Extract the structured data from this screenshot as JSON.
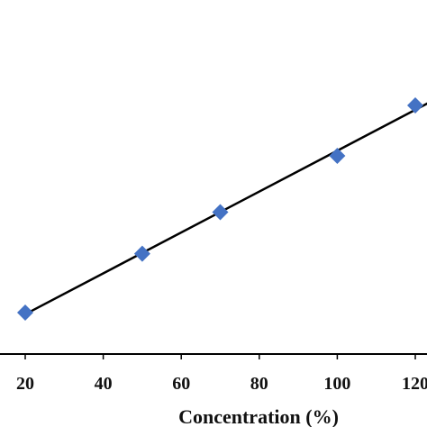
{
  "chart_data": {
    "type": "scatter",
    "title": "",
    "xlabel": "Concentration (%)",
    "ylabel": "",
    "xlim": [
      0,
      130
    ],
    "x_ticks": [
      20,
      40,
      60,
      80,
      100,
      120
    ],
    "x_tick_labels": [
      "20",
      "40",
      "60",
      "80",
      "100",
      "120"
    ],
    "grid": false,
    "legend": "none",
    "marker": "diamond",
    "series": [
      {
        "x": [
          20,
          50,
          70,
          100,
          120
        ],
        "y": [
          1.0,
          2.6,
          3.73,
          5.26,
          6.63
        ],
        "color": "#4472C4"
      }
    ],
    "trendline": {
      "type": "linear",
      "x_range": [
        20,
        124
      ],
      "color": "#000000"
    }
  }
}
